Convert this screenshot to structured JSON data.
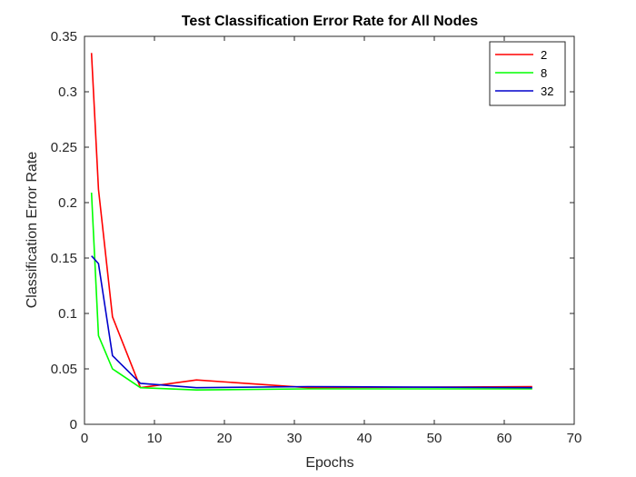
{
  "chart_data": {
    "type": "line",
    "title": "Test Classification Error Rate for All Nodes",
    "xlabel": "Epochs",
    "ylabel": "Classification Error Rate",
    "xlim": [
      0,
      70
    ],
    "ylim": [
      0,
      0.35
    ],
    "xticks": [
      0,
      10,
      20,
      30,
      40,
      50,
      60,
      70
    ],
    "yticks": [
      0,
      0.05,
      0.1,
      0.15,
      0.2,
      0.25,
      0.3,
      0.35
    ],
    "grid": false,
    "legend_position": "top-right",
    "series": [
      {
        "name": "2",
        "color": "#ff0000",
        "x": [
          1,
          2,
          4,
          8,
          16,
          32,
          64
        ],
        "y": [
          0.335,
          0.212,
          0.097,
          0.033,
          0.04,
          0.033,
          0.034
        ]
      },
      {
        "name": "8",
        "color": "#00ff00",
        "x": [
          1,
          2,
          4,
          8,
          16,
          32,
          64
        ],
        "y": [
          0.209,
          0.08,
          0.05,
          0.033,
          0.031,
          0.032,
          0.032
        ]
      },
      {
        "name": "32",
        "color": "#0000cc",
        "x": [
          1,
          2,
          4,
          8,
          16,
          32,
          64
        ],
        "y": [
          0.152,
          0.145,
          0.062,
          0.037,
          0.033,
          0.034,
          0.033
        ]
      }
    ]
  }
}
